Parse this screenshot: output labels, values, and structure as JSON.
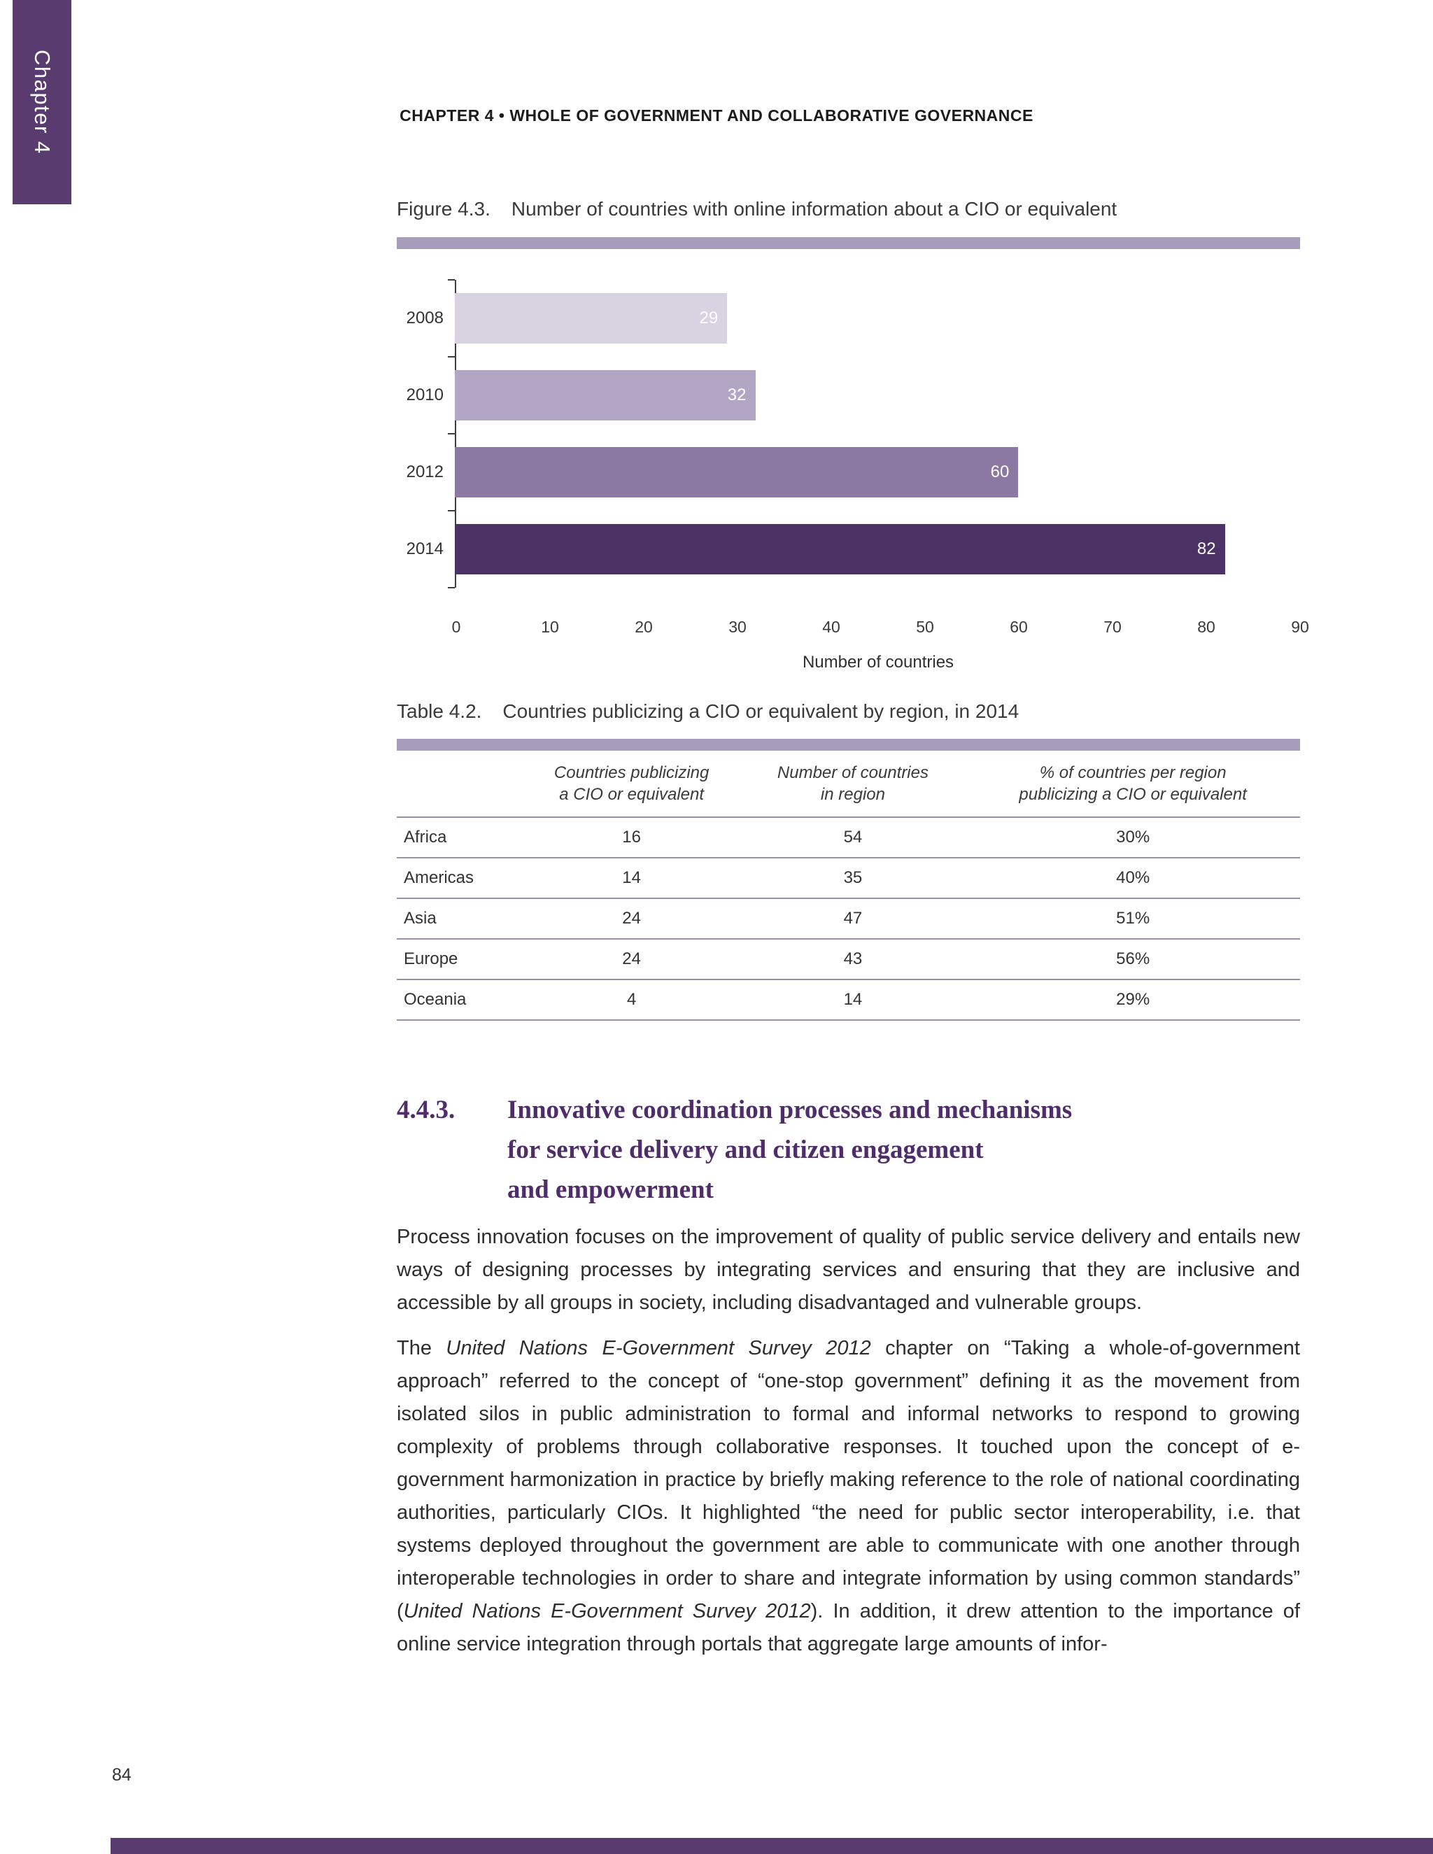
{
  "page": {
    "chapter_tab": "Chapter 4",
    "running_header": "CHAPTER 4 • WHOLE OF GOVERNMENT AND COLLABORATIVE GOVERNANCE",
    "page_number": "84",
    "accent_color": "#5a3b70",
    "rule_color": "#a79cbb"
  },
  "figure": {
    "label": "Figure 4.3.",
    "title": "Number of countries with online information about a CIO or equivalent"
  },
  "chart_data": {
    "type": "bar",
    "orientation": "horizontal",
    "categories": [
      "2008",
      "2010",
      "2012",
      "2014"
    ],
    "values": [
      29,
      32,
      60,
      82
    ],
    "bar_colors": [
      "#d8d2e1",
      "#b3a6c4",
      "#8c79a3",
      "#4d3365"
    ],
    "value_label_color": "#ffffff",
    "xlabel": "Number of countries",
    "xlim": [
      0,
      90
    ],
    "xticks": [
      0,
      10,
      20,
      30,
      40,
      50,
      60,
      70,
      80,
      90
    ],
    "grid": false,
    "legend": false
  },
  "table": {
    "label": "Table 4.2.",
    "title": "Countries publicizing a CIO or equivalent by region, in 2014",
    "columns": [
      "",
      "Countries publicizing\na CIO or equivalent",
      "Number of countries\nin region",
      "% of countries per region\npublicizing a CIO or equivalent"
    ],
    "rows": [
      [
        "Africa",
        "16",
        "54",
        "30%"
      ],
      [
        "Americas",
        "14",
        "35",
        "40%"
      ],
      [
        "Asia",
        "24",
        "47",
        "51%"
      ],
      [
        "Europe",
        "24",
        "43",
        "56%"
      ],
      [
        "Oceania",
        "4",
        "14",
        "29%"
      ]
    ]
  },
  "section": {
    "number": "4.4.3.",
    "title": "Innovative coordination processes and mechanisms\nfor service delivery and citizen engagement\nand empowerment"
  },
  "body": {
    "paragraph1": [
      {
        "t": "Process innovation focuses on the improvement of quality of public service delivery and entails new ways of designing processes by integrating services and ensuring that they are inclusive and accessible by all groups in society, including disadvantaged and vulnerable groups.",
        "i": false
      }
    ],
    "paragraph2": [
      {
        "t": "The ",
        "i": false
      },
      {
        "t": "United Nations E-Government Survey 2012",
        "i": true
      },
      {
        "t": " chapter on “Taking a whole-of-government approach” referred to the concept of “one-stop government” defining it as the movement from isolated silos in public administration to formal and informal networks to respond to growing complexity of problems through collaborative responses. It touched upon the concept of e-government harmonization in practice by briefly making reference to the role of national coordinating authorities, particularly CIOs. It highlighted “the need for public sector interoperability, i.e. that systems deployed throughout the government are able to communicate with one another through interoperable technologies in order to share and integrate information by using common standards” (",
        "i": false
      },
      {
        "t": "United Nations E-Government Survey 2012",
        "i": true
      },
      {
        "t": "). In addition, it drew attention to the importance of online service integration through portals that aggregate large amounts of infor-",
        "i": false
      }
    ]
  }
}
